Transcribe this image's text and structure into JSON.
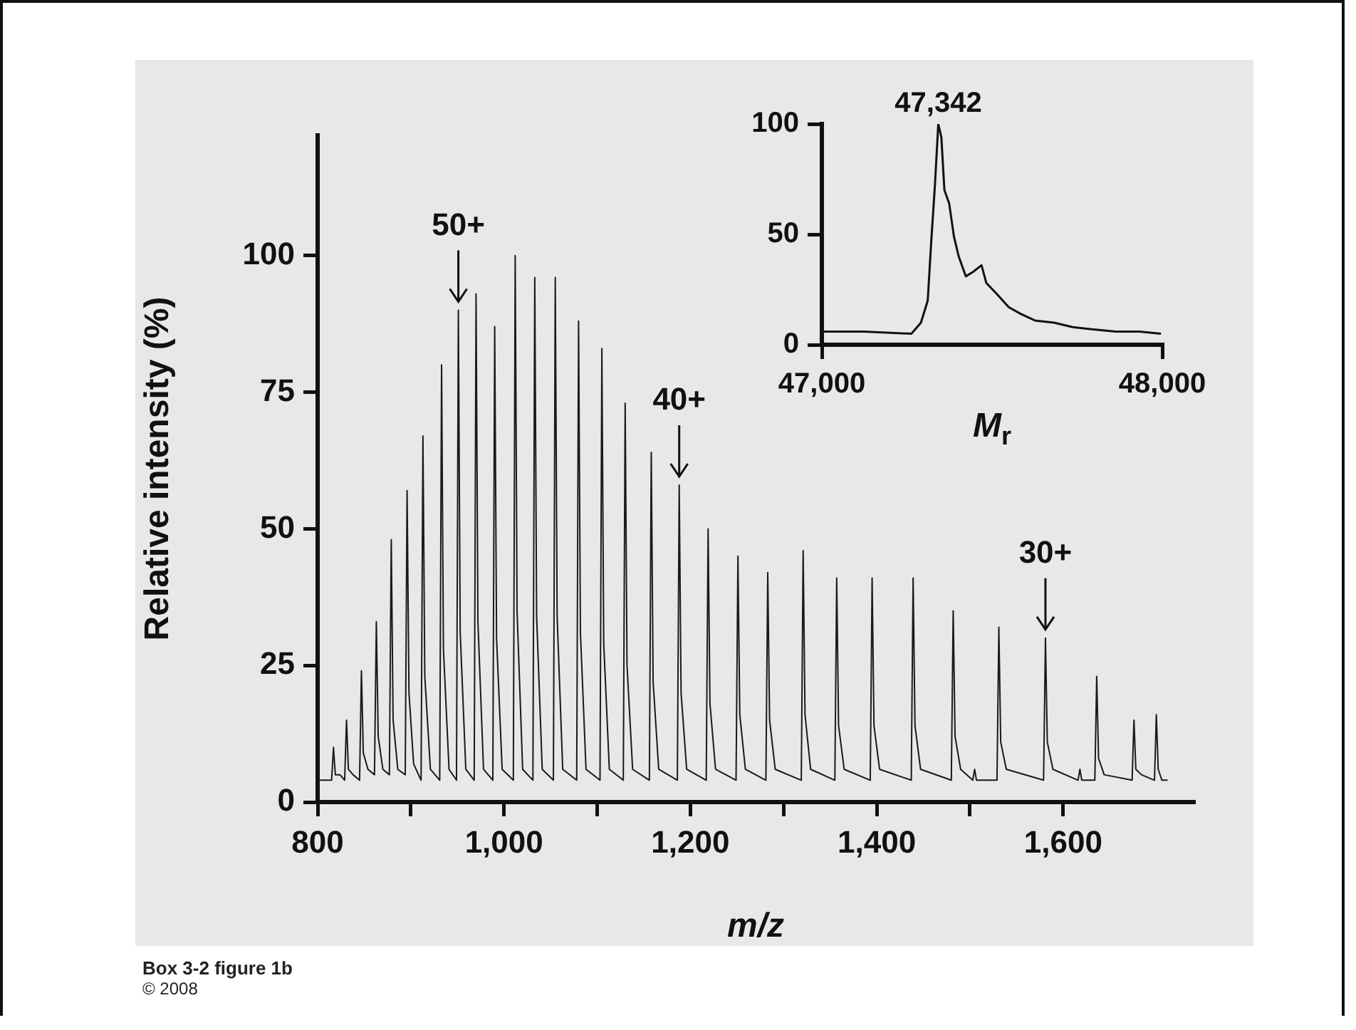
{
  "chart_data": [
    {
      "type": "line",
      "xlabel": "m/z",
      "ylabel": "Relative intensity (%)",
      "color": "#1a1a1a",
      "x": [
        800,
        815,
        817,
        819,
        824,
        829,
        831,
        833,
        838,
        845,
        847,
        849,
        854,
        861,
        863,
        865,
        870,
        877,
        879,
        881,
        886,
        894,
        896,
        898,
        903,
        911,
        913,
        915,
        921,
        931,
        933,
        935,
        941,
        949,
        951,
        953,
        959,
        968,
        970,
        972,
        978,
        988,
        990,
        992,
        998,
        1010,
        1012,
        1014,
        1020,
        1031,
        1033,
        1035,
        1041,
        1053,
        1055,
        1057,
        1063,
        1078,
        1080,
        1082,
        1088,
        1103,
        1105,
        1107,
        1113,
        1128,
        1130,
        1132,
        1138,
        1156,
        1158,
        1160,
        1166,
        1186,
        1188,
        1190,
        1196,
        1217,
        1219,
        1221,
        1227,
        1249,
        1251,
        1253,
        1259,
        1281,
        1283,
        1285,
        1291,
        1319,
        1321,
        1323,
        1329,
        1355,
        1357,
        1359,
        1365,
        1393,
        1395,
        1397,
        1403,
        1437,
        1439,
        1441,
        1447,
        1480,
        1482,
        1484,
        1490,
        1503,
        1505,
        1507,
        1529,
        1531,
        1533,
        1539,
        1579,
        1581,
        1583,
        1589,
        1616,
        1618,
        1620,
        1634,
        1636,
        1638,
        1644,
        1674,
        1676,
        1678,
        1684,
        1698,
        1700,
        1702,
        1706,
        1712
      ],
      "values": [
        4,
        4,
        10,
        5,
        5,
        4,
        15,
        6,
        5,
        4,
        24,
        9,
        6,
        5,
        33,
        12,
        6,
        5,
        48,
        15,
        6,
        5,
        57,
        20,
        7,
        4,
        67,
        23,
        6,
        4,
        80,
        28,
        6,
        4,
        90,
        31,
        6,
        4,
        93,
        33,
        6,
        4,
        87,
        30,
        6,
        4,
        100,
        35,
        6,
        4,
        96,
        34,
        6,
        4,
        96,
        34,
        6,
        4,
        88,
        31,
        6,
        4,
        83,
        29,
        6,
        4,
        73,
        25,
        6,
        4,
        64,
        22,
        6,
        4,
        58,
        20,
        6,
        4,
        50,
        18,
        6,
        4,
        45,
        16,
        6,
        4,
        42,
        15,
        6,
        4,
        46,
        16,
        6,
        4,
        41,
        14,
        6,
        4,
        41,
        14,
        6,
        4,
        41,
        14,
        6,
        4,
        35,
        12,
        6,
        4,
        6,
        4,
        4,
        32,
        11,
        6,
        4,
        30,
        11,
        6,
        4,
        6,
        4,
        4,
        23,
        8,
        5,
        4,
        15,
        6,
        5,
        4,
        16,
        6,
        4,
        4
      ],
      "xlim": [
        800,
        1740
      ],
      "xticks": [
        {
          "value": 800,
          "label": "800"
        },
        {
          "value": 900,
          "label": null
        },
        {
          "value": 1000,
          "label": "1,000"
        },
        {
          "value": 1100,
          "label": null
        },
        {
          "value": 1200,
          "label": "1,200"
        },
        {
          "value": 1300,
          "label": null
        },
        {
          "value": 1400,
          "label": "1,400"
        },
        {
          "value": 1500,
          "label": null
        },
        {
          "value": 1600,
          "label": "1,600"
        }
      ],
      "ylim": [
        0,
        122
      ],
      "yticks": [
        0,
        25,
        50,
        75,
        100
      ],
      "grid": false,
      "annotations": [
        {
          "text": "50+",
          "x": 951,
          "y": 90
        },
        {
          "text": "40+",
          "x": 1188,
          "y": 58
        },
        {
          "text": "30+",
          "x": 1581,
          "y": 30
        },
        "Box 3-2 figure 1b",
        "© 2008"
      ]
    },
    {
      "type": "line",
      "xlabel": "M$_{r}$",
      "color": "#111111",
      "x": [
        47004,
        47123,
        47263,
        47291,
        47311,
        47321,
        47332,
        47342,
        47351,
        47360,
        47374,
        47388,
        47402,
        47423,
        47444,
        47469,
        47483,
        47514,
        47549,
        47584,
        47626,
        47682,
        47737,
        47793,
        47863,
        47933,
        47996
      ],
      "values": [
        6,
        6,
        5,
        10,
        20,
        46,
        72,
        100,
        94,
        70,
        64,
        49,
        40,
        31,
        33,
        36,
        28,
        23,
        17,
        14,
        11,
        10,
        8,
        7,
        6,
        6,
        5
      ],
      "xlim": [
        47000,
        48000
      ],
      "xticks": [
        {
          "value": 47000,
          "label": "47,000"
        },
        {
          "value": 48000,
          "label": "48,000"
        }
      ],
      "ylim": [
        0,
        100
      ],
      "yticks": [
        0,
        50,
        100
      ],
      "grid": false,
      "annotations": [
        {
          "text": "47,342",
          "x": 47342,
          "y": 100
        }
      ]
    }
  ]
}
